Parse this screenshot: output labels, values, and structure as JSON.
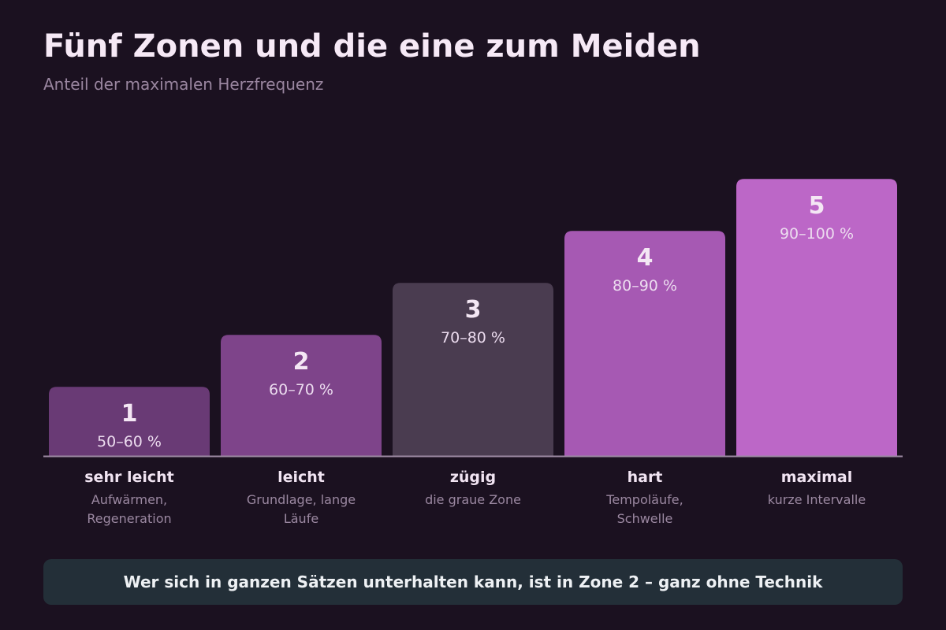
{
  "header": {
    "title": "Fünf Zonen und die eine zum Meiden",
    "subtitle": "Anteil der maximalen Herzfrequenz"
  },
  "chart_data": {
    "type": "bar",
    "title": "Fünf Zonen und die eine zum Meiden",
    "subtitle": "Anteil der maximalen Herzfrequenz",
    "xlabel": "",
    "ylabel": "",
    "grid": false,
    "legend": "none",
    "categories": [
      "1",
      "2",
      "3",
      "4",
      "5"
    ],
    "values": [
      1,
      2,
      3,
      4,
      5
    ],
    "ylim": [
      0,
      5.3
    ],
    "bars": [
      {
        "zone": "1",
        "range": "50–60 %",
        "name": "sehr leicht",
        "desc": "Aufwärmen, Regeneration",
        "color": "#693a75"
      },
      {
        "zone": "2",
        "range": "60–70 %",
        "name": "leicht",
        "desc": "Grundlage, lange Läufe",
        "color": "#7e448a"
      },
      {
        "zone": "3",
        "range": "70–80 %",
        "name": "zügig",
        "desc": "die graue Zone",
        "color": "#4a3c50"
      },
      {
        "zone": "4",
        "range": "80–90 %",
        "name": "hart",
        "desc": "Tempoläufe, Schwelle",
        "color": "#a659b3"
      },
      {
        "zone": "5",
        "range": "90–100 %",
        "name": "maximal",
        "desc": "kurze Intervalle",
        "color": "#bc67c7"
      }
    ],
    "colors": {
      "baseline": "#9d8aa3",
      "label_strong": "#f4e7f4",
      "label_range": "#ecdcef",
      "category_name": "#f1e4f2",
      "category_desc": "#9b88a1"
    }
  },
  "note": {
    "text": "Wer sich in ganzen Sätzen unterhalten kann, ist in Zone 2 – ganz ohne Technik"
  }
}
